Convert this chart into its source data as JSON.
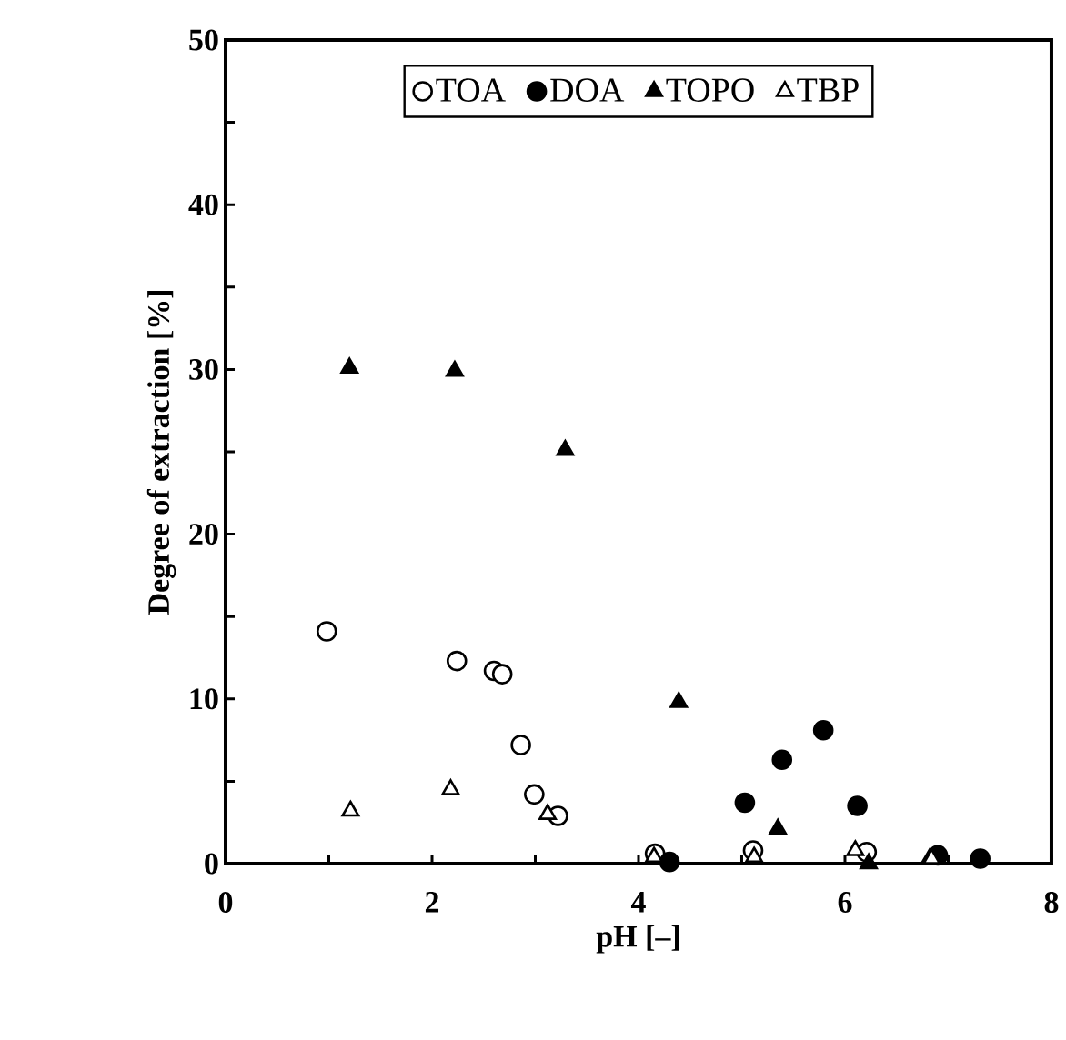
{
  "chart_data": {
    "type": "scatter",
    "xlabel": "pH [–]",
    "ylabel": "Degree of extraction [%]",
    "xlim": [
      0,
      8
    ],
    "ylim": [
      0,
      50
    ],
    "xticks": [
      0,
      {
        "value": 1,
        "label": null
      },
      2,
      {
        "value": 3,
        "label": null
      },
      4,
      {
        "value": 5,
        "label": null
      },
      6,
      {
        "value": 7,
        "label": null
      },
      8
    ],
    "yticks": [
      0,
      {
        "value": 5,
        "label": null
      },
      10,
      {
        "value": 15,
        "label": null
      },
      20,
      {
        "value": 25,
        "label": null
      },
      30,
      {
        "value": 35,
        "label": null
      },
      40,
      {
        "value": 45,
        "label": null
      },
      50
    ],
    "legend": "top",
    "grid": false,
    "series": [
      {
        "name": "TOA",
        "color": "#ffffff",
        "marker": "circle",
        "x": [
          0.98,
          2.24,
          2.6,
          2.68,
          2.86,
          2.99,
          3.22,
          4.16,
          5.11,
          6.21
        ],
        "values": [
          14.1,
          12.3,
          11.7,
          11.5,
          7.2,
          4.2,
          2.9,
          0.6,
          0.8,
          0.7
        ]
      },
      {
        "name": "DOA",
        "color": "#000000",
        "marker": "circle",
        "x": [
          4.3,
          5.03,
          5.39,
          5.79,
          6.12,
          6.9,
          7.31
        ],
        "values": [
          0.1,
          3.7,
          6.3,
          8.1,
          3.5,
          0.5,
          0.3
        ]
      },
      {
        "name": "TOPO",
        "color": "#000000",
        "marker": "triangle",
        "x": [
          1.2,
          2.22,
          3.29,
          4.39,
          5.35,
          6.23,
          6.82
        ],
        "values": [
          30.1,
          29.9,
          25.1,
          9.8,
          2.1,
          0,
          0.3
        ]
      },
      {
        "name": "TBP",
        "color": "#ffffff",
        "marker": "triangle",
        "x": [
          1.21,
          2.18,
          3.12,
          4.15,
          5.12,
          6.1,
          6.84
        ],
        "values": [
          3.2,
          4.5,
          3.0,
          0.4,
          0.4,
          0.8,
          0.3
        ]
      }
    ]
  }
}
